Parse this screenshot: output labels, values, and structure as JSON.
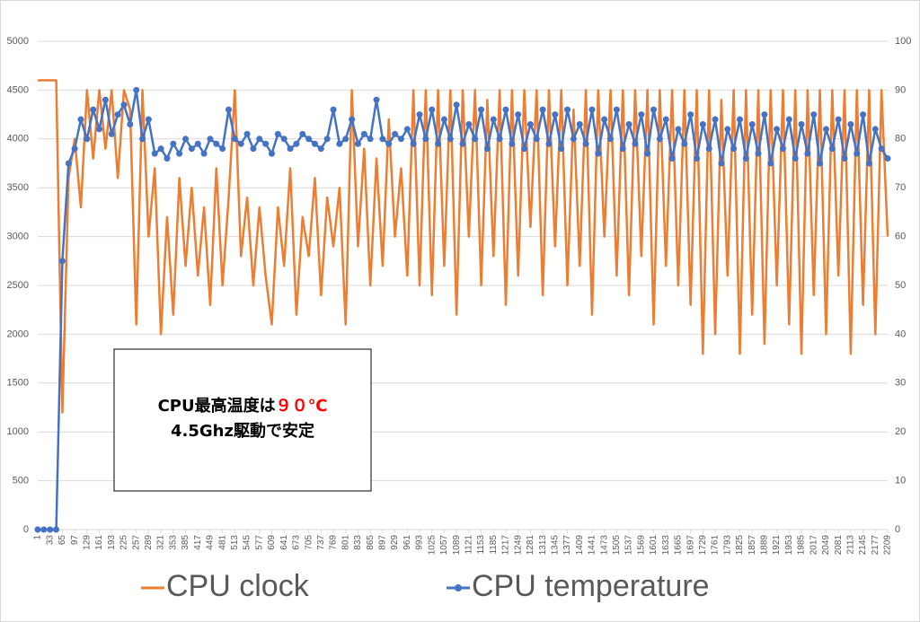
{
  "chart_data": {
    "type": "line",
    "x": [
      1,
      17,
      33,
      49,
      65,
      81,
      97,
      113,
      129,
      145,
      161,
      177,
      193,
      209,
      225,
      241,
      257,
      273,
      289,
      305,
      321,
      337,
      353,
      369,
      385,
      401,
      417,
      433,
      449,
      465,
      481,
      497,
      513,
      529,
      545,
      561,
      577,
      593,
      609,
      625,
      641,
      657,
      673,
      689,
      705,
      721,
      737,
      753,
      769,
      785,
      801,
      817,
      833,
      849,
      865,
      881,
      897,
      913,
      929,
      945,
      961,
      977,
      993,
      1009,
      1025,
      1041,
      1057,
      1073,
      1089,
      1105,
      1121,
      1137,
      1153,
      1169,
      1185,
      1201,
      1217,
      1233,
      1249,
      1265,
      1281,
      1297,
      1313,
      1329,
      1345,
      1361,
      1377,
      1393,
      1409,
      1425,
      1441,
      1457,
      1473,
      1489,
      1505,
      1521,
      1537,
      1553,
      1569,
      1585,
      1601,
      1617,
      1633,
      1649,
      1665,
      1681,
      1697,
      1713,
      1729,
      1745,
      1761,
      1777,
      1793,
      1809,
      1825,
      1841,
      1857,
      1873,
      1889,
      1905,
      1921,
      1937,
      1953,
      1969,
      1985,
      2001,
      2017,
      2033,
      2049,
      2065,
      2081,
      2097,
      2113,
      2129,
      2145,
      2161,
      2177,
      2193,
      2209
    ],
    "series": [
      {
        "name": "CPU clock",
        "color": "#ed7d31",
        "marker": false,
        "values": [
          4600,
          4600,
          4600,
          4600,
          1200,
          3600,
          4000,
          3300,
          4500,
          3800,
          4500,
          3900,
          4500,
          3600,
          4500,
          4300,
          2100,
          4500,
          3000,
          3700,
          2000,
          3200,
          2200,
          3600,
          2700,
          3500,
          2600,
          3300,
          2300,
          3700,
          2500,
          3400,
          4500,
          2800,
          3400,
          2500,
          3300,
          2600,
          2100,
          3300,
          2700,
          3700,
          2200,
          3200,
          2800,
          3600,
          2400,
          3400,
          2900,
          3500,
          2100,
          4500,
          2900,
          3900,
          2500,
          3800,
          2700,
          4200,
          3000,
          3700,
          2600,
          4500,
          2500,
          4500,
          2400,
          4500,
          2700,
          4500,
          2200,
          4500,
          3000,
          4500,
          2500,
          4400,
          2800,
          4500,
          2300,
          4500,
          2600,
          4500,
          3100,
          4500,
          2400,
          4500,
          2900,
          4500,
          2500,
          4300,
          2700,
          4500,
          2200,
          4500,
          3000,
          4500,
          2600,
          4500,
          2400,
          4500,
          2800,
          4500,
          2100,
          4500,
          2700,
          4500,
          2500,
          4500,
          2300,
          4500,
          1800,
          4500,
          2000,
          4400,
          2600,
          4500,
          1800,
          4500,
          2200,
          4500,
          1900,
          4500,
          2500,
          4500,
          2100,
          4500,
          1800,
          4500,
          2400,
          4500,
          2000,
          4500,
          2600,
          4500,
          1800,
          4500,
          2300,
          4500,
          2000,
          4500,
          3000
        ]
      },
      {
        "name": "CPU temperature",
        "color": "#4472c4",
        "marker": true,
        "axis": "y2",
        "values": [
          0,
          0,
          0,
          0,
          55,
          75,
          78,
          84,
          80,
          86,
          82,
          88,
          81,
          85,
          87,
          83,
          90,
          80,
          84,
          77,
          78,
          76,
          79,
          77,
          80,
          78,
          79,
          77,
          80,
          79,
          78,
          86,
          80,
          79,
          81,
          78,
          80,
          79,
          77,
          81,
          80,
          78,
          79,
          81,
          80,
          79,
          78,
          80,
          86,
          79,
          80,
          84,
          79,
          81,
          80,
          88,
          80,
          79,
          81,
          80,
          82,
          79,
          85,
          80,
          86,
          79,
          84,
          80,
          87,
          79,
          83,
          80,
          86,
          78,
          84,
          80,
          86,
          79,
          85,
          78,
          83,
          80,
          86,
          79,
          85,
          78,
          86,
          80,
          83,
          79,
          86,
          77,
          84,
          80,
          86,
          78,
          83,
          79,
          85,
          77,
          86,
          80,
          84,
          76,
          82,
          79,
          85,
          76,
          83,
          78,
          84,
          75,
          82,
          78,
          84,
          76,
          83,
          77,
          85,
          75,
          82,
          78,
          84,
          76,
          83,
          77,
          85,
          75,
          82,
          78,
          84,
          76,
          83,
          77,
          85,
          75,
          82,
          78,
          76
        ]
      }
    ],
    "xlim": [
      1,
      2209
    ],
    "xticks": [
      1,
      33,
      65,
      97,
      129,
      161,
      193,
      225,
      257,
      289,
      321,
      353,
      385,
      417,
      449,
      481,
      513,
      545,
      577,
      609,
      641,
      673,
      705,
      737,
      769,
      801,
      833,
      865,
      897,
      929,
      961,
      993,
      1025,
      1057,
      1089,
      1121,
      1153,
      1185,
      1217,
      1249,
      1281,
      1313,
      1345,
      1377,
      1409,
      1441,
      1473,
      1505,
      1537,
      1569,
      1601,
      1633,
      1665,
      1697,
      1729,
      1761,
      1793,
      1825,
      1857,
      1889,
      1921,
      1953,
      1985,
      2017,
      2049,
      2081,
      2113,
      2145,
      2177,
      2209
    ],
    "ylim": [
      0,
      5000
    ],
    "yticks": [
      0,
      500,
      1000,
      1500,
      2000,
      2500,
      3000,
      3500,
      4000,
      4500,
      5000
    ],
    "y2lim": [
      0,
      100
    ],
    "y2ticks": [
      0,
      10,
      20,
      30,
      40,
      50,
      60,
      70,
      80,
      90,
      100
    ],
    "grid": true,
    "legend": "bottom",
    "annotation": {
      "text": "CPU最高温度は",
      "highlight": "９０℃",
      "highlight_color": "#ff0000",
      "line2": "4.5Ghz駆動で安定"
    }
  }
}
